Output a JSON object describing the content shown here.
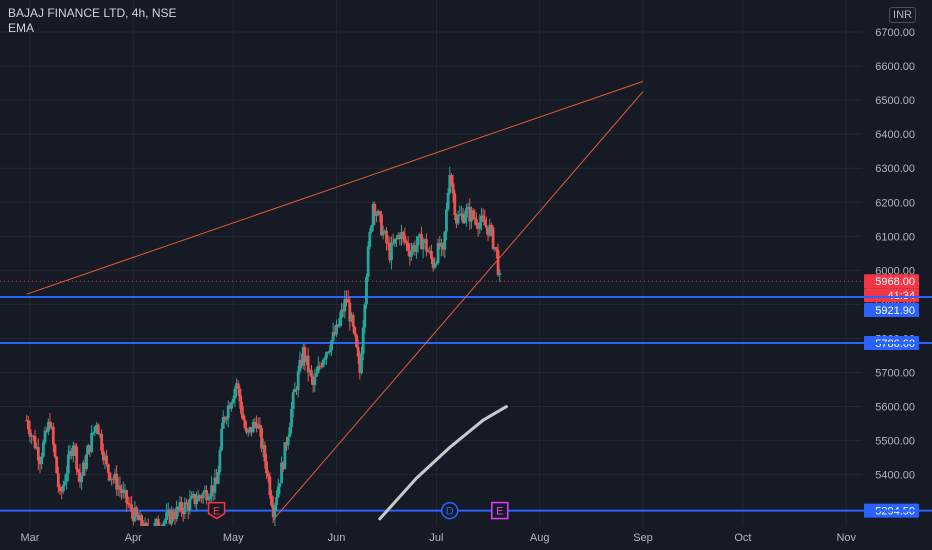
{
  "header": {
    "symbol_line": "BAJAJ FINANCE LTD, 4h, NSE",
    "indicator": "EMA",
    "currency": "INR"
  },
  "chart_data": {
    "type": "candlestick",
    "title": "BAJAJ FINANCE LTD, 4h, NSE",
    "ylim": [
      5230,
      6760
    ],
    "y_ticks": [
      "6700.00",
      "6600.00",
      "6500.00",
      "6400.00",
      "6300.00",
      "6200.00",
      "6100.00",
      "6000.00",
      "5900.00",
      "5800.00",
      "5700.00",
      "5600.00",
      "5500.00",
      "5400.00"
    ],
    "x_ticks": [
      "Mar",
      "Apr",
      "May",
      "Jun",
      "Jul",
      "Aug",
      "Sep",
      "Oct",
      "Nov"
    ],
    "x_tick_dates": [
      "2023-03-01",
      "2023-04-01",
      "2023-05-01",
      "2023-06-01",
      "2023-07-01",
      "2023-08-01",
      "2023-09-01",
      "2023-10-01",
      "2023-11-01"
    ],
    "price_labels": [
      {
        "text": "5968.00",
        "value": 5968,
        "color": "#f23645"
      },
      {
        "text": "41:34",
        "value": 5933,
        "color": "#f23645"
      },
      {
        "text": "5921.90",
        "value": 5921.9,
        "color": "#2962ff"
      },
      {
        "text": "5786.60",
        "value": 5786.6,
        "color": "#2962ff"
      },
      {
        "text": "5294.50",
        "value": 5294.5,
        "color": "#2962ff"
      }
    ],
    "horizontal_lines": [
      5921.9,
      5786.6,
      5294.5
    ],
    "trendlines": [
      {
        "from": [
          "2023-02-28",
          5930
        ],
        "to": [
          "2023-09-01",
          6555
        ]
      },
      {
        "from": [
          "2023-05-13",
          5267
        ],
        "to": [
          "2023-09-01",
          6525
        ]
      }
    ],
    "ema": [
      [
        "2023-06-14",
        5270
      ],
      [
        "2023-06-25",
        5390
      ],
      [
        "2023-07-05",
        5480
      ],
      [
        "2023-07-15",
        5560
      ],
      [
        "2023-07-22",
        5600
      ]
    ],
    "events": [
      {
        "label": "E",
        "date": "2023-04-26",
        "color": "#f23645"
      },
      {
        "label": "D",
        "date": "2023-07-05",
        "color": "#2962ff"
      },
      {
        "label": "E",
        "date": "2023-07-20",
        "color": "#e040fb"
      }
    ],
    "colors": {
      "up": "#26a69a",
      "down": "#ef5350",
      "trend": "#e45a38",
      "hline": "#2962ff",
      "ema": "#c9cacd"
    },
    "price_anchors": [
      [
        "2023-02-28",
        5560
      ],
      [
        "2023-03-04",
        5450
      ],
      [
        "2023-03-07",
        5560
      ],
      [
        "2023-03-10",
        5330
      ],
      [
        "2023-03-14",
        5500
      ],
      [
        "2023-03-16",
        5380
      ],
      [
        "2023-03-21",
        5560
      ],
      [
        "2023-03-24",
        5420
      ],
      [
        "2023-03-28",
        5360
      ],
      [
        "2023-03-31",
        5300
      ],
      [
        "2023-04-05",
        5230
      ],
      [
        "2023-04-26",
        5370
      ],
      [
        "2023-04-28",
        5560
      ],
      [
        "2023-05-02",
        5670
      ],
      [
        "2023-05-05",
        5510
      ],
      [
        "2023-05-08",
        5560
      ],
      [
        "2023-05-11",
        5420
      ],
      [
        "2023-05-13",
        5300
      ],
      [
        "2023-05-16",
        5440
      ],
      [
        "2023-05-19",
        5620
      ],
      [
        "2023-05-22",
        5760
      ],
      [
        "2023-05-25",
        5660
      ],
      [
        "2023-05-28",
        5750
      ],
      [
        "2023-06-01",
        5820
      ],
      [
        "2023-06-04",
        5920
      ],
      [
        "2023-06-06",
        5820
      ],
      [
        "2023-06-08",
        5700
      ],
      [
        "2023-06-10",
        6000
      ],
      [
        "2023-06-12",
        6200
      ],
      [
        "2023-06-14",
        6140
      ],
      [
        "2023-06-17",
        6050
      ],
      [
        "2023-06-20",
        6110
      ],
      [
        "2023-06-23",
        6060
      ],
      [
        "2023-06-27",
        6090
      ],
      [
        "2023-06-30",
        6020
      ],
      [
        "2023-07-02",
        6070
      ],
      [
        "2023-07-03",
        6040
      ],
      [
        "2023-07-05",
        6300
      ],
      [
        "2023-07-07",
        6150
      ],
      [
        "2023-07-10",
        6170
      ],
      [
        "2023-07-13",
        6150
      ],
      [
        "2023-07-17",
        6120
      ],
      [
        "2023-07-19",
        6050
      ],
      [
        "2023-07-20",
        5968
      ]
    ]
  }
}
